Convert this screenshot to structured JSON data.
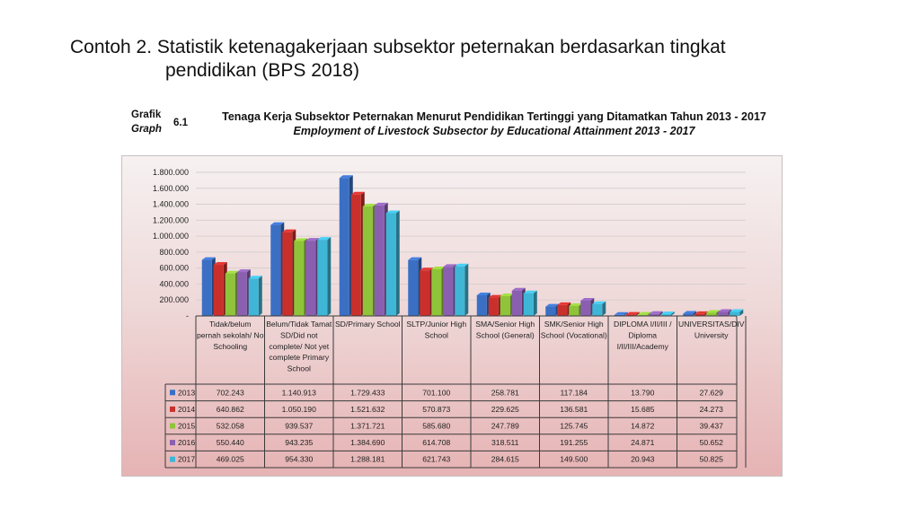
{
  "slide": {
    "title_line1": "Contoh 2. Statistik ketenagakerjaan subsektor peternakan berdasarkan tingkat",
    "title_line2": "pendidikan (BPS 2018)"
  },
  "caption": {
    "label_id": "Grafik",
    "label_en": "Graph",
    "number": "6.1",
    "title_id": "Tenaga Kerja Subsektor Peternakan Menurut Pendidikan Tertinggi yang Ditamatkan Tahun 2013 - 2017",
    "title_en": "Employment of Livestock Subsector by Educational Attainment 2013 - 2017"
  },
  "chart_data": {
    "type": "bar",
    "ylim": [
      0,
      1800000
    ],
    "yticks": [
      "-",
      "200.000",
      "400.000",
      "600.000",
      "800.000",
      "1.000.000",
      "1.200.000",
      "1.400.000",
      "1.600.000",
      "1.800.000"
    ],
    "grid": true,
    "legend": "table-left",
    "categories": [
      [
        "Tidak/belum",
        "pernah sekolah/ No",
        "Schooling"
      ],
      [
        "Belum/Tidak Tamat",
        "SD/Did not",
        "complete/ Not yet",
        "complete Primary",
        "School"
      ],
      [
        "SD/Primary School"
      ],
      [
        "SLTP/Junior High",
        "School"
      ],
      [
        "SMA/Senior High",
        "School (General)"
      ],
      [
        "SMK/Senior High",
        "School (Vocational)"
      ],
      [
        "DIPLOMA I/II/III /",
        "Diploma",
        "I/II/III/Academy"
      ],
      [
        "UNIVERSITAS/DIV",
        "University"
      ]
    ],
    "series": [
      {
        "name": "2013",
        "color": "#3a6fc4",
        "values": [
          702243,
          1140913,
          1729433,
          701100,
          258781,
          117184,
          13790,
          27629
        ],
        "labels": [
          "702.243",
          "1.140.913",
          "1.729.433",
          "701.100",
          "258.781",
          "117.184",
          "13.790",
          "27.629"
        ]
      },
      {
        "name": "2014",
        "color": "#c9302c",
        "values": [
          640862,
          1050190,
          1521632,
          570873,
          229625,
          136581,
          15685,
          24273
        ],
        "labels": [
          "640.862",
          "1.050.190",
          "1.521.632",
          "570.873",
          "229.625",
          "136.581",
          "15.685",
          "24.273"
        ]
      },
      {
        "name": "2015",
        "color": "#8fc43a",
        "values": [
          532058,
          939537,
          1371721,
          585680,
          247789,
          125745,
          14872,
          39437
        ],
        "labels": [
          "532.058",
          "939.537",
          "1.371.721",
          "585.680",
          "247.789",
          "125.745",
          "14.872",
          "39.437"
        ]
      },
      {
        "name": "2016",
        "color": "#8a5fb0",
        "values": [
          550440,
          943235,
          1384690,
          614708,
          318511,
          191255,
          24871,
          50652
        ],
        "labels": [
          "550.440",
          "943.235",
          "1.384.690",
          "614.708",
          "318.511",
          "191.255",
          "24.871",
          "50.652"
        ]
      },
      {
        "name": "2017",
        "color": "#3fb6d6",
        "values": [
          469025,
          954330,
          1288181,
          621743,
          284615,
          149500,
          20943,
          50825
        ],
        "labels": [
          "469.025",
          "954.330",
          "1.288.181",
          "621.743",
          "284.615",
          "149.500",
          "20.943",
          "50.825"
        ]
      }
    ]
  }
}
